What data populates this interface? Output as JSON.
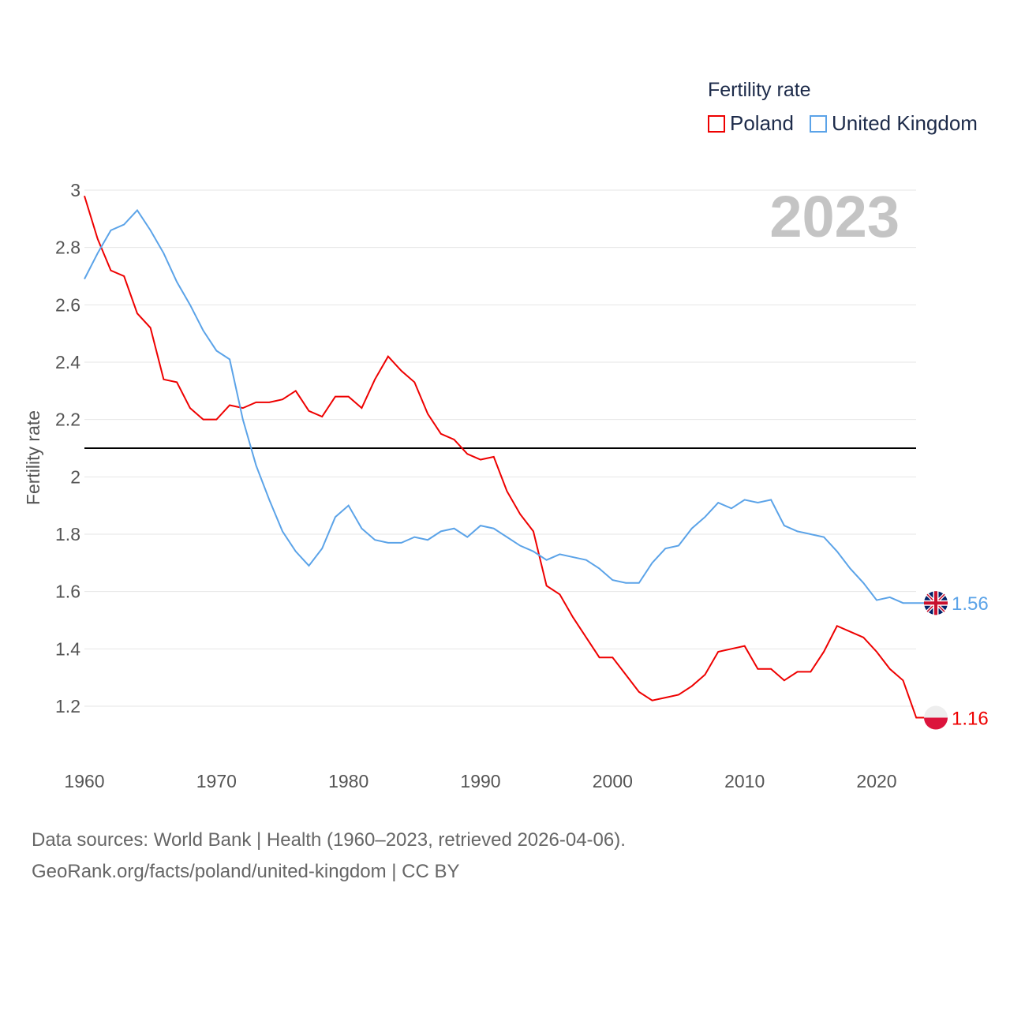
{
  "legend": {
    "title": "Fertility rate",
    "items": [
      {
        "label": "Poland",
        "color": "#ee0000"
      },
      {
        "label": "United Kingdom",
        "color": "#5ba3e8"
      }
    ]
  },
  "year_label": "2023",
  "chart_data": {
    "type": "line",
    "title": "Fertility rate",
    "xlabel": "",
    "ylabel": "Fertility rate",
    "xlim": [
      1960,
      2023
    ],
    "ylim": [
      1.05,
      3.02
    ],
    "xticks": [
      "1960",
      "1970",
      "1980",
      "1990",
      "2000",
      "2010",
      "2020"
    ],
    "yticks": [
      "1.2",
      "1.4",
      "1.6",
      "1.8",
      "2",
      "2.2",
      "2.4",
      "2.6",
      "2.8",
      "3"
    ],
    "reference_line": 2.1,
    "x_start": 1960,
    "series": [
      {
        "name": "Poland",
        "color": "#ee0000",
        "end_label": "1.16",
        "values": [
          2.98,
          2.83,
          2.72,
          2.7,
          2.57,
          2.52,
          2.34,
          2.33,
          2.24,
          2.2,
          2.2,
          2.25,
          2.24,
          2.26,
          2.26,
          2.27,
          2.3,
          2.23,
          2.21,
          2.28,
          2.28,
          2.24,
          2.34,
          2.42,
          2.37,
          2.33,
          2.22,
          2.15,
          2.13,
          2.08,
          2.06,
          2.07,
          1.95,
          1.87,
          1.81,
          1.62,
          1.59,
          1.51,
          1.44,
          1.37,
          1.37,
          1.31,
          1.25,
          1.22,
          1.23,
          1.24,
          1.27,
          1.31,
          1.39,
          1.4,
          1.41,
          1.33,
          1.33,
          1.29,
          1.32,
          1.32,
          1.39,
          1.48,
          1.46,
          1.44,
          1.39,
          1.33,
          1.29,
          1.16
        ]
      },
      {
        "name": "United Kingdom",
        "color": "#5ba3e8",
        "end_label": "1.56",
        "values": [
          2.69,
          2.78,
          2.86,
          2.88,
          2.93,
          2.86,
          2.78,
          2.68,
          2.6,
          2.51,
          2.44,
          2.41,
          2.2,
          2.04,
          1.92,
          1.81,
          1.74,
          1.69,
          1.75,
          1.86,
          1.9,
          1.82,
          1.78,
          1.77,
          1.77,
          1.79,
          1.78,
          1.81,
          1.82,
          1.79,
          1.83,
          1.82,
          1.79,
          1.76,
          1.74,
          1.71,
          1.73,
          1.72,
          1.71,
          1.68,
          1.64,
          1.63,
          1.63,
          1.7,
          1.75,
          1.76,
          1.82,
          1.86,
          1.91,
          1.89,
          1.92,
          1.91,
          1.92,
          1.83,
          1.81,
          1.8,
          1.79,
          1.74,
          1.68,
          1.63,
          1.57,
          1.58,
          1.56,
          1.56
        ]
      }
    ]
  },
  "footer": {
    "line1": "Data sources: World Bank | Health (1960–2023, retrieved 2026-04-06).",
    "line2": "GeoRank.org/facts/poland/united-kingdom | CC BY"
  }
}
